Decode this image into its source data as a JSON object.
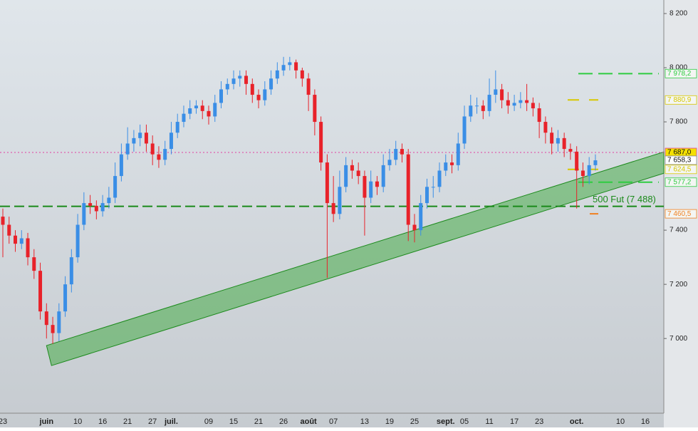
{
  "chart_data": {
    "type": "candlestick",
    "categories": [
      "23",
      null,
      null,
      null,
      null,
      null,
      null,
      "juin",
      null,
      null,
      null,
      null,
      "10",
      null,
      null,
      null,
      "16",
      null,
      null,
      null,
      "21",
      null,
      null,
      null,
      "27",
      null,
      null,
      "juil.",
      null,
      null,
      null,
      null,
      null,
      "09",
      null,
      null,
      null,
      "15",
      null,
      null,
      null,
      "21",
      null,
      null,
      null,
      "26",
      null,
      null,
      null,
      "août",
      null,
      null,
      null,
      "07",
      null,
      null,
      null,
      null,
      "13",
      null,
      null,
      null,
      "19",
      null,
      null,
      null,
      "25",
      null,
      null,
      null,
      null,
      "sept.",
      null,
      null,
      "05",
      null,
      null,
      null,
      "11",
      null,
      null,
      null,
      "17",
      null,
      null,
      null,
      "23",
      null,
      null,
      null,
      null,
      null,
      "oct.",
      null,
      null,
      null,
      null,
      null,
      null,
      "10",
      null,
      null,
      null,
      "16"
    ],
    "open": [
      7450,
      7420,
      7380,
      7350,
      7370,
      7300,
      7250,
      7100,
      7050,
      7020,
      7100,
      7200,
      7300,
      7420,
      7500,
      7490,
      7470,
      7500,
      7520,
      7600,
      7680,
      7720,
      7740,
      7760,
      7720,
      7680,
      7660,
      7700,
      7760,
      7800,
      7830,
      7850,
      7860,
      7840,
      7820,
      7870,
      7920,
      7940,
      7960,
      7970,
      7940,
      7900,
      7880,
      7920,
      7960,
      7990,
      8010,
      8020,
      7990,
      7960,
      7900,
      7800,
      7650,
      7500,
      7460,
      7560,
      7640,
      7620,
      7600,
      7520,
      7580,
      7560,
      7640,
      7660,
      7700,
      7680,
      7420,
      7400,
      7500,
      7560,
      7560,
      7620,
      7650,
      7640,
      7720,
      7820,
      7860,
      7860,
      7840,
      7900,
      7920,
      7880,
      7860,
      7870,
      7880,
      7870,
      7850,
      7800,
      7760,
      7720,
      7740,
      7700,
      7690,
      7620,
      7600,
      7640,
      null,
      null,
      null,
      null,
      null,
      null,
      null,
      null
    ],
    "high": [
      7480,
      7450,
      7400,
      7400,
      7390,
      7330,
      7280,
      7130,
      7080,
      7130,
      7230,
      7330,
      7460,
      7540,
      7530,
      7510,
      7530,
      7560,
      7650,
      7720,
      7780,
      7770,
      7790,
      7790,
      7750,
      7710,
      7730,
      7800,
      7830,
      7860,
      7880,
      7880,
      7880,
      7860,
      7900,
      7950,
      7960,
      7990,
      7990,
      7990,
      7960,
      7920,
      7950,
      7990,
      8020,
      8040,
      8040,
      8030,
      8000,
      7980,
      7920,
      7820,
      7680,
      7600,
      7620,
      7670,
      7660,
      7650,
      7620,
      7620,
      7600,
      7680,
      7700,
      7730,
      7720,
      7700,
      7460,
      7530,
      7590,
      7600,
      7650,
      7680,
      7680,
      7760,
      7860,
      7900,
      7890,
      7880,
      7960,
      7990,
      7940,
      7910,
      7900,
      7910,
      7940,
      7890,
      7870,
      7820,
      7780,
      7770,
      7760,
      7720,
      7710,
      7650,
      7670,
      7680,
      null,
      null,
      null,
      null,
      null,
      null,
      null,
      null
    ],
    "low": [
      7300,
      7350,
      7320,
      7330,
      7270,
      7220,
      7070,
      7000,
      6980,
      6990,
      7080,
      7170,
      7280,
      7400,
      7460,
      7440,
      7450,
      7480,
      7500,
      7580,
      7660,
      7690,
      7710,
      7690,
      7640,
      7630,
      7640,
      7680,
      7740,
      7780,
      7810,
      7830,
      7810,
      7790,
      7800,
      7850,
      7900,
      7920,
      7930,
      7900,
      7870,
      7850,
      7860,
      7900,
      7940,
      7970,
      7990,
      7960,
      7930,
      7840,
      7750,
      7620,
      7224,
      7430,
      7440,
      7540,
      7590,
      7570,
      7380,
      7500,
      7530,
      7540,
      7620,
      7640,
      7650,
      7360,
      7355,
      7380,
      7480,
      7520,
      7540,
      7600,
      7610,
      7620,
      7700,
      7800,
      7830,
      7810,
      7820,
      7870,
      7850,
      7830,
      7840,
      7850,
      7840,
      7820,
      7740,
      7720,
      7680,
      7690,
      7670,
      7660,
      7480,
      7560,
      7570,
      7620,
      null,
      null,
      null,
      null,
      null,
      null,
      null,
      null
    ],
    "close": [
      7420,
      7380,
      7350,
      7370,
      7300,
      7250,
      7100,
      7050,
      7020,
      7100,
      7200,
      7300,
      7420,
      7500,
      7490,
      7470,
      7500,
      7520,
      7600,
      7680,
      7720,
      7740,
      7760,
      7720,
      7680,
      7660,
      7700,
      7760,
      7800,
      7830,
      7850,
      7860,
      7840,
      7820,
      7870,
      7920,
      7940,
      7960,
      7970,
      7940,
      7900,
      7880,
      7920,
      7960,
      7990,
      8010,
      8020,
      7990,
      7960,
      7900,
      7800,
      7650,
      7500,
      7460,
      7560,
      7640,
      7620,
      7600,
      7520,
      7580,
      7560,
      7640,
      7660,
      7700,
      7680,
      7420,
      7400,
      7500,
      7560,
      7560,
      7620,
      7650,
      7640,
      7720,
      7820,
      7860,
      7860,
      7840,
      7900,
      7920,
      7880,
      7860,
      7870,
      7880,
      7870,
      7850,
      7800,
      7760,
      7720,
      7740,
      7700,
      7690,
      7620,
      7600,
      7640,
      7658,
      null,
      null,
      null,
      null,
      null,
      null,
      null,
      null
    ],
    "up_color": "#3a8ee6",
    "down_color": "#e8222a",
    "ylim": [
      6724.2,
      8250
    ],
    "yticks": [
      {
        "value": 8200,
        "label": "8 200"
      },
      {
        "value": 8000,
        "label": "8 000"
      },
      {
        "value": 7800,
        "label": "7 800"
      },
      {
        "value": 7400,
        "label": "7 400"
      },
      {
        "value": 7200,
        "label": "7 200"
      },
      {
        "value": 7000,
        "label": "7 000"
      }
    ],
    "channel": {
      "upper": [
        6974,
        7689
      ],
      "lower": [
        6900,
        7610
      ],
      "color": "#3aa83a"
    },
    "levels": [
      {
        "value": 7978.2,
        "label": "7 978,2",
        "color": "#2ecc40"
      },
      {
        "value": 7880.9,
        "label": "7 880,9",
        "color": "#d8c800"
      },
      {
        "value": 7687.0,
        "label": "7 687,0",
        "color": "#e040a0"
      },
      {
        "value": 7658.3,
        "label": "7 658,3",
        "color": "#888888"
      },
      {
        "value": 7624.5,
        "label": "7 624,5",
        "color": "#d8c800"
      },
      {
        "value": 7577.2,
        "label": "7 577,2",
        "color": "#2ecc40"
      },
      {
        "value": 7460.5,
        "label": "7 460,5",
        "color": "#f08020"
      }
    ],
    "future": {
      "value": 7488,
      "label": "500 Fut (7 488)",
      "color": "#1a8a1a"
    }
  }
}
